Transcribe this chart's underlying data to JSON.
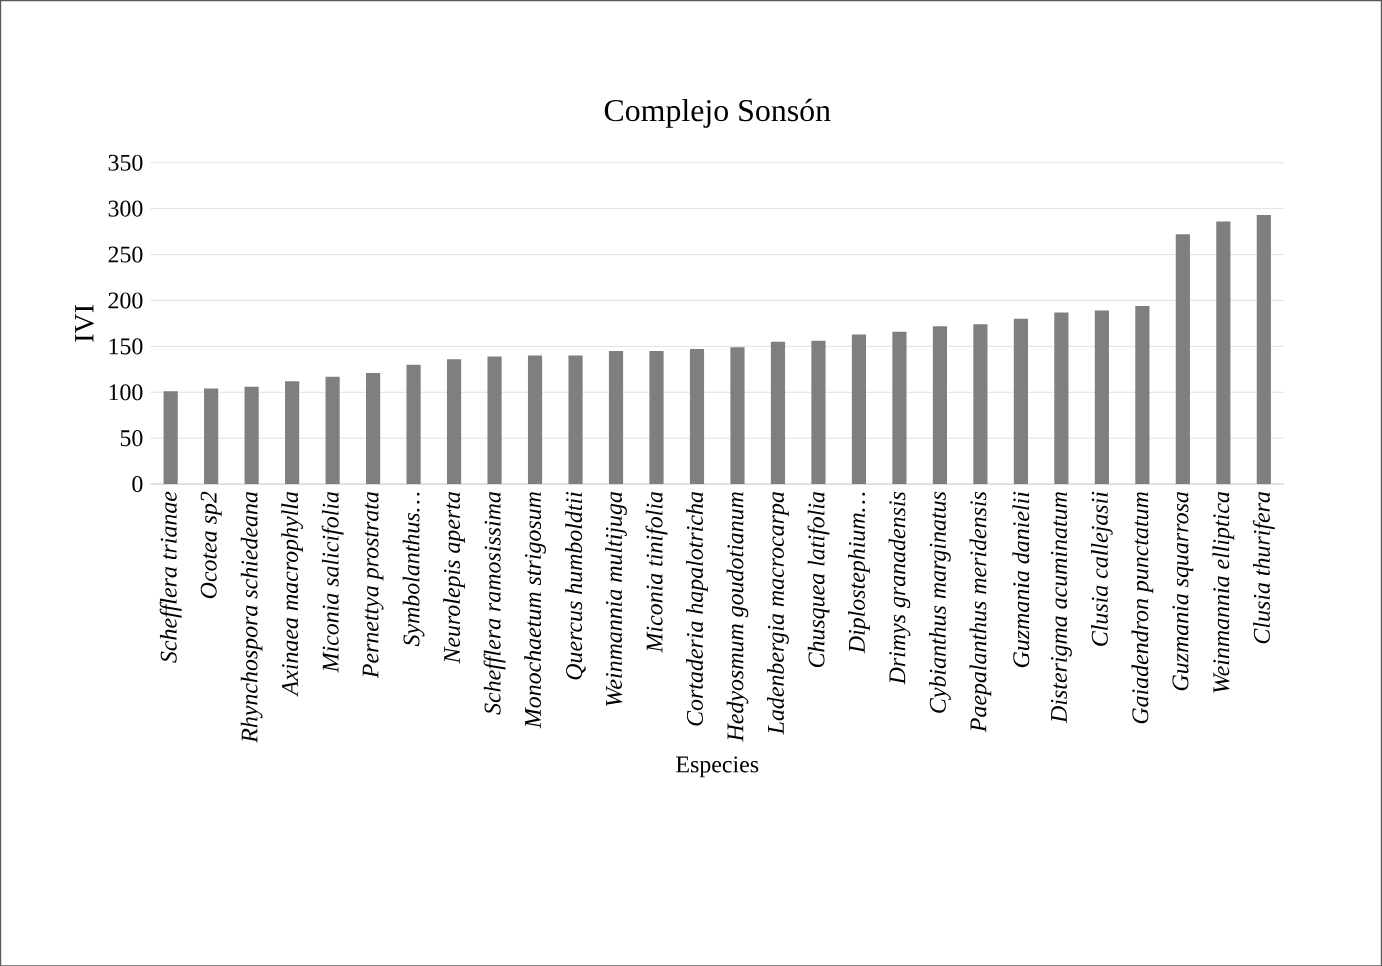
{
  "chart_data": {
    "type": "bar",
    "title": "Complejo Sonsón",
    "xlabel": "Especies",
    "ylabel": "IVI",
    "categories": [
      "Schefflera trianae",
      "Ocotea sp2",
      "Rhynchospora schiedeana",
      "Axinaea macrophylla",
      "Miconia salicifolia",
      "Pernettya prostrata",
      "Symbolanthus…",
      "Neurolepis aperta",
      "Schefflera ramosissima",
      "Monochaetum strigosum",
      "Quercus humboldtii",
      "Weinmannia multijuga",
      "Miconia tinifolia",
      "Cortaderia hapalotricha",
      "Hedyosmum goudotianum",
      "Ladenbergia macrocarpa",
      "Chusquea latifolia",
      "Diplostephium…",
      "Drimys granadensis",
      "Cybianthus marginatus",
      "Paepalanthus meridensis",
      "Guzmania danielii",
      "Disterigma acuminatum",
      "Clusia callejasii",
      "Gaiadendron punctatum",
      "Guzmania squarrosa",
      "Weinmannia elliptica",
      "Clusia thurifera"
    ],
    "values": [
      101,
      104,
      106,
      112,
      117,
      121,
      130,
      136,
      139,
      140,
      140,
      145,
      145,
      147,
      149,
      155,
      156,
      163,
      166,
      172,
      174,
      180,
      187,
      189,
      194,
      272,
      286,
      293
    ],
    "color": "#7f7f7f",
    "ylim": [
      0,
      350
    ],
    "yticks": [
      0,
      50,
      100,
      150,
      200,
      250,
      300,
      350
    ],
    "grid": "y"
  }
}
